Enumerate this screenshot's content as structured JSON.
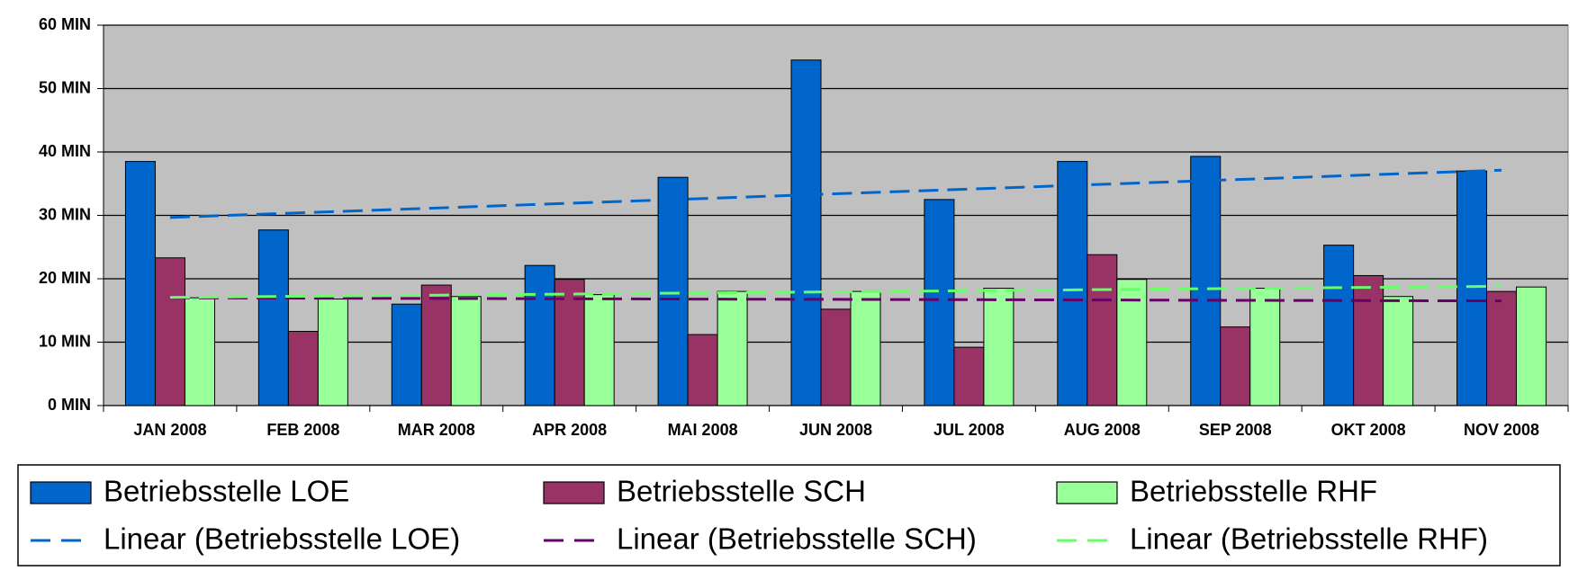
{
  "chart_data": {
    "type": "bar",
    "categories": [
      "JAN 2008",
      "FEB 2008",
      "MAR 2008",
      "APR 2008",
      "MAI 2008",
      "JUN 2008",
      "JUL 2008",
      "AUG 2008",
      "SEP 2008",
      "OKT 2008",
      "NOV 2008"
    ],
    "series": [
      {
        "name": "Betriebsstelle LOE",
        "color": "#0066cc",
        "values": [
          38.5,
          27.7,
          16,
          22.1,
          36,
          54.5,
          32.5,
          38.5,
          39.3,
          25.3,
          37
        ],
        "trendline": {
          "name": "Linear (Betriebsstelle LOE)",
          "color": "#0066cc"
        }
      },
      {
        "name": "Betriebsstelle SCH",
        "color": "#993366",
        "values": [
          23.3,
          11.7,
          19,
          19.9,
          11.2,
          15.2,
          9.2,
          23.8,
          12.4,
          20.5,
          18
        ],
        "trendline": {
          "name": "Linear (Betriebsstelle SCH)",
          "color": "#660066"
        }
      },
      {
        "name": "Betriebsstelle RHF",
        "color": "#99ff99",
        "values": [
          17,
          16.8,
          17.2,
          17.5,
          18,
          18,
          18.5,
          19.9,
          18.5,
          17.2,
          18.7
        ],
        "trendline": {
          "name": "Linear (Betriebsstelle RHF)",
          "color": "#66ff66"
        }
      }
    ],
    "ylim": [
      0,
      60
    ],
    "yticks": [
      {
        "value": 0,
        "label": "0 MIN"
      },
      {
        "value": 10,
        "label": "10 MIN"
      },
      {
        "value": 20,
        "label": "20 MIN"
      },
      {
        "value": 30,
        "label": "30 MIN"
      },
      {
        "value": 40,
        "label": "40 MIN"
      },
      {
        "value": 50,
        "label": "50 MIN"
      },
      {
        "value": 60,
        "label": "60 MIN"
      }
    ],
    "grid": true,
    "plot_background": "#c0c0c0",
    "legend": "bottom"
  }
}
